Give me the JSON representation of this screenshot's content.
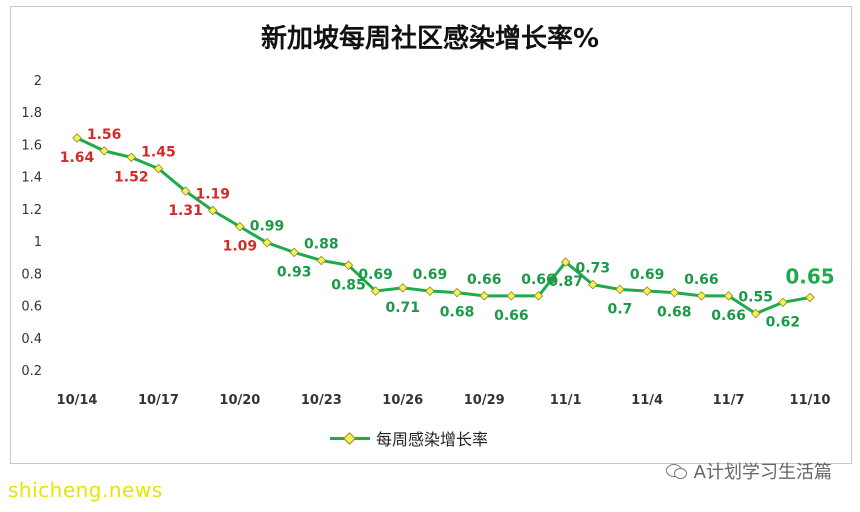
{
  "chart_data": {
    "type": "line",
    "title": "新加坡每周社区感染增长率%",
    "xlabel": "",
    "ylabel": "",
    "ylim": [
      0.2,
      2
    ],
    "yticks": [
      "0.2",
      "0.4",
      "0.6",
      "0.8",
      "1",
      "1.2",
      "1.4",
      "1.6",
      "1.8",
      "2"
    ],
    "xtick_labels": [
      "10/14",
      "10/17",
      "10/20",
      "10/23",
      "10/26",
      "10/29",
      "11/1",
      "11/4",
      "11/7",
      "11/10"
    ],
    "x": [
      "10/14",
      "10/15",
      "10/16",
      "10/17",
      "10/18",
      "10/19",
      "10/20",
      "10/21",
      "10/22",
      "10/23",
      "10/24",
      "10/25",
      "10/26",
      "10/27",
      "10/28",
      "10/29",
      "10/30",
      "10/31",
      "11/1",
      "11/2",
      "11/3",
      "11/4",
      "11/5",
      "11/6",
      "11/7",
      "11/8",
      "11/9",
      "11/10"
    ],
    "series": [
      {
        "name": "每周感染增长率",
        "values": [
          1.64,
          1.56,
          1.52,
          1.45,
          1.31,
          1.19,
          1.09,
          0.99,
          0.93,
          0.88,
          0.85,
          0.69,
          0.71,
          0.69,
          0.68,
          0.66,
          0.66,
          0.66,
          0.87,
          0.73,
          0.7,
          0.69,
          0.68,
          0.66,
          0.66,
          0.55,
          0.62,
          0.65
        ],
        "labels": [
          "1.64",
          "1.56",
          "1.52",
          "1.45",
          "1.31",
          "1.19",
          "1.09",
          "0.99",
          "0.93",
          "0.88",
          "0.85",
          "0.69",
          "0.71",
          "0.69",
          "0.68",
          "0.66",
          "0.66",
          "0.66",
          "0.87",
          "0.73",
          "0.7",
          "0.69",
          "0.68",
          "0.66",
          "0.66",
          "0.55",
          "0.62",
          "0.65"
        ],
        "label_positions": [
          "below",
          "above",
          "below",
          "above",
          "below",
          "above",
          "below",
          "above",
          "below",
          "above",
          "below",
          "above",
          "below",
          "above",
          "below",
          "above",
          "below",
          "above",
          "below",
          "above",
          "below",
          "above",
          "below",
          "above",
          "below",
          "above",
          "below",
          "above"
        ],
        "label_colors": [
          "red",
          "red",
          "red",
          "red",
          "red",
          "red",
          "red",
          "green",
          "green",
          "green",
          "green",
          "green",
          "green",
          "green",
          "green",
          "green",
          "green",
          "green",
          "green",
          "green",
          "green",
          "green",
          "green",
          "green",
          "green",
          "green",
          "green",
          "green"
        ]
      }
    ],
    "legend_position": "bottom",
    "grid": false,
    "colors": {
      "line": "#1faa4b",
      "marker": "#f4f05a",
      "red_label": "#d42a2a",
      "green_label": "#1a9a47",
      "last_label": "#1faa4b"
    }
  },
  "legend": {
    "label": "每周感染增长率"
  },
  "footer": {
    "source": "shicheng.news",
    "account": "A计划学习生活篇"
  }
}
